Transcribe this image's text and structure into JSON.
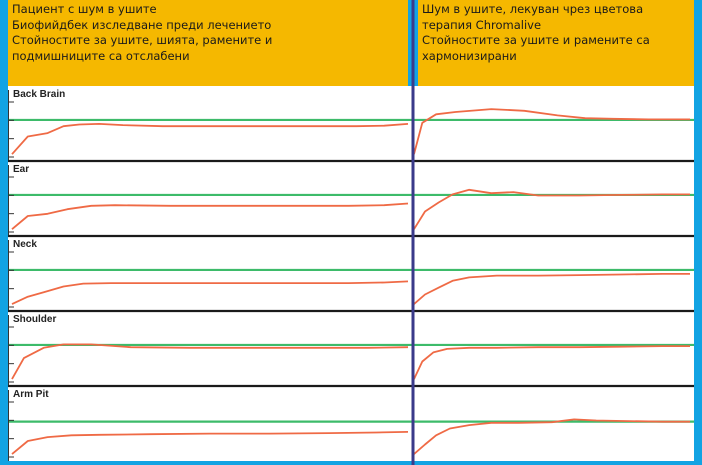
{
  "header_left": {
    "lines": [
      "Пациент с шум в ушите",
      "Биофийдбек изследване преди лечението",
      "Стойностите за ушите, шията, рамените и",
      "подмишниците са отслабени"
    ]
  },
  "header_right": {
    "lines": [
      "Шум в ушите, лекуван чрез цветова",
      "терапия Chromalive",
      "Стойностите за ушите и рамените са",
      "хармонизирани"
    ]
  },
  "colors": {
    "background": "#12a3e3",
    "header": "#f5b800",
    "panel": "#ffffff",
    "trace": "#ef6a45",
    "reference": "#3dbb6a",
    "divider": "#3a3a8a",
    "separator": "#1a1a1a"
  },
  "chart_data": {
    "type": "line",
    "panels": [
      {
        "label": "Back Brain",
        "reference": 0.65,
        "before": [
          [
            0,
            0.05
          ],
          [
            0.04,
            0.36
          ],
          [
            0.09,
            0.42
          ],
          [
            0.13,
            0.54
          ],
          [
            0.17,
            0.57
          ],
          [
            0.22,
            0.58
          ],
          [
            0.28,
            0.56
          ],
          [
            0.38,
            0.54
          ],
          [
            0.5,
            0.54
          ],
          [
            0.62,
            0.54
          ],
          [
            0.75,
            0.54
          ],
          [
            0.87,
            0.54
          ],
          [
            0.94,
            0.55
          ],
          [
            1,
            0.58
          ]
        ],
        "after": [
          [
            0,
            0.05
          ],
          [
            0.03,
            0.6
          ],
          [
            0.08,
            0.75
          ],
          [
            0.15,
            0.79
          ],
          [
            0.28,
            0.84
          ],
          [
            0.4,
            0.81
          ],
          [
            0.52,
            0.73
          ],
          [
            0.62,
            0.68
          ],
          [
            0.72,
            0.67
          ],
          [
            0.85,
            0.66
          ],
          [
            1,
            0.66
          ]
        ]
      },
      {
        "label": "Ear",
        "reference": 0.65,
        "before": [
          [
            0,
            0.05
          ],
          [
            0.04,
            0.28
          ],
          [
            0.09,
            0.32
          ],
          [
            0.14,
            0.4
          ],
          [
            0.2,
            0.46
          ],
          [
            0.26,
            0.47
          ],
          [
            0.4,
            0.46
          ],
          [
            0.55,
            0.46
          ],
          [
            0.7,
            0.46
          ],
          [
            0.85,
            0.46
          ],
          [
            0.94,
            0.47
          ],
          [
            1,
            0.5
          ]
        ],
        "after": [
          [
            0,
            0.05
          ],
          [
            0.04,
            0.36
          ],
          [
            0.09,
            0.52
          ],
          [
            0.14,
            0.66
          ],
          [
            0.2,
            0.74
          ],
          [
            0.28,
            0.68
          ],
          [
            0.36,
            0.7
          ],
          [
            0.45,
            0.64
          ],
          [
            0.6,
            0.64
          ],
          [
            0.75,
            0.65
          ],
          [
            0.9,
            0.66
          ],
          [
            1,
            0.66
          ]
        ]
      },
      {
        "label": "Neck",
        "reference": 0.65,
        "before": [
          [
            0,
            0.05
          ],
          [
            0.04,
            0.18
          ],
          [
            0.08,
            0.26
          ],
          [
            0.13,
            0.36
          ],
          [
            0.18,
            0.41
          ],
          [
            0.25,
            0.42
          ],
          [
            0.4,
            0.42
          ],
          [
            0.55,
            0.42
          ],
          [
            0.7,
            0.42
          ],
          [
            0.85,
            0.42
          ],
          [
            0.94,
            0.43
          ],
          [
            1,
            0.45
          ]
        ],
        "after": [
          [
            0,
            0.05
          ],
          [
            0.04,
            0.22
          ],
          [
            0.09,
            0.34
          ],
          [
            0.14,
            0.46
          ],
          [
            0.2,
            0.52
          ],
          [
            0.3,
            0.55
          ],
          [
            0.45,
            0.55
          ],
          [
            0.6,
            0.56
          ],
          [
            0.75,
            0.57
          ],
          [
            0.9,
            0.58
          ],
          [
            1,
            0.58
          ]
        ]
      },
      {
        "label": "Shoulder",
        "reference": 0.65,
        "before": [
          [
            0,
            0.05
          ],
          [
            0.03,
            0.42
          ],
          [
            0.08,
            0.6
          ],
          [
            0.13,
            0.66
          ],
          [
            0.2,
            0.66
          ],
          [
            0.3,
            0.61
          ],
          [
            0.45,
            0.6
          ],
          [
            0.6,
            0.6
          ],
          [
            0.75,
            0.6
          ],
          [
            0.9,
            0.6
          ],
          [
            1,
            0.61
          ]
        ],
        "after": [
          [
            0,
            0.05
          ],
          [
            0.03,
            0.36
          ],
          [
            0.07,
            0.52
          ],
          [
            0.12,
            0.58
          ],
          [
            0.2,
            0.6
          ],
          [
            0.3,
            0.6
          ],
          [
            0.45,
            0.61
          ],
          [
            0.6,
            0.61
          ],
          [
            0.75,
            0.62
          ],
          [
            0.9,
            0.63
          ],
          [
            1,
            0.63
          ]
        ]
      },
      {
        "label": "Arm Pit",
        "reference": 0.62,
        "before": [
          [
            0,
            0.05
          ],
          [
            0.04,
            0.28
          ],
          [
            0.09,
            0.35
          ],
          [
            0.15,
            0.38
          ],
          [
            0.22,
            0.39
          ],
          [
            0.35,
            0.4
          ],
          [
            0.5,
            0.41
          ],
          [
            0.65,
            0.41
          ],
          [
            0.8,
            0.42
          ],
          [
            0.92,
            0.43
          ],
          [
            1,
            0.44
          ]
        ],
        "after": [
          [
            0,
            0.05
          ],
          [
            0.04,
            0.22
          ],
          [
            0.08,
            0.38
          ],
          [
            0.13,
            0.5
          ],
          [
            0.2,
            0.56
          ],
          [
            0.28,
            0.6
          ],
          [
            0.38,
            0.6
          ],
          [
            0.5,
            0.61
          ],
          [
            0.58,
            0.66
          ],
          [
            0.66,
            0.64
          ],
          [
            0.78,
            0.63
          ],
          [
            0.9,
            0.62
          ],
          [
            1,
            0.62
          ]
        ]
      }
    ]
  }
}
